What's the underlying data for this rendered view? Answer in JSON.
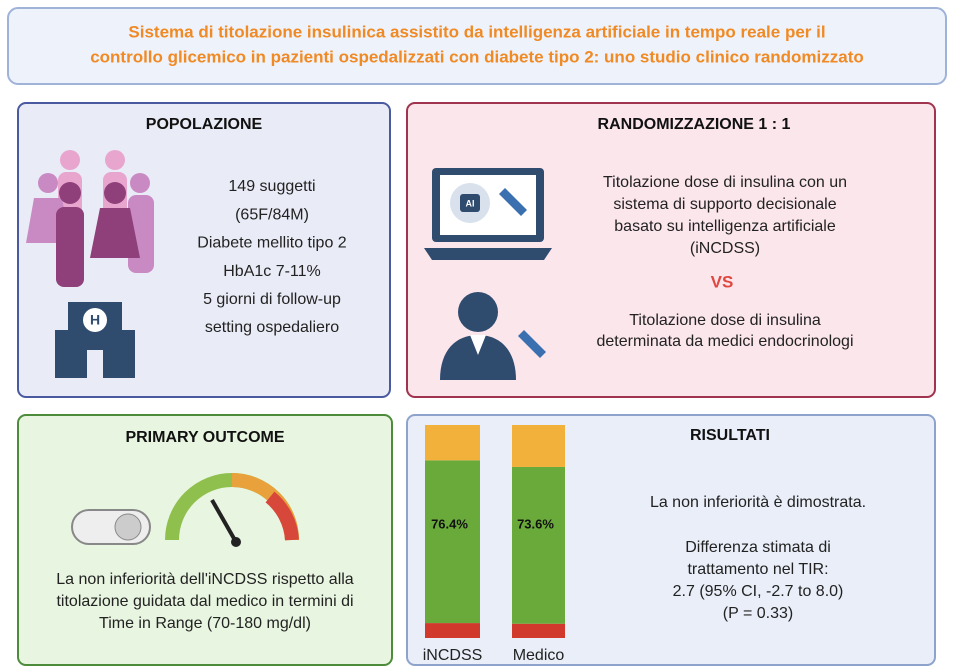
{
  "header": {
    "title": [
      "Sistema di titolazione insulinica assistito da intelligenza artificiale in tempo reale per il",
      "controllo glicemico in pazienti ospedalizzati con diabete tipo 2: uno studio clinico randomizzato"
    ]
  },
  "population": {
    "title": "POPOLAZIONE",
    "lines": [
      "149 suggetti",
      "(65F/84M)",
      "Diabete mellito tipo 2",
      "HbA1c 7-11%",
      "5 giorni di follow-up",
      "setting ospedaliero"
    ]
  },
  "randomization": {
    "title": "RANDOMIZZAZIONE 1 : 1",
    "arm1": [
      "Titolazione dose di insulina con un",
      "sistema di supporto decisionale",
      "basato su intelligenza artificiale",
      "(iNCDSS)"
    ],
    "vs": "VS",
    "arm2": [
      "Titolazione dose di insulina",
      "determinata da medici endocrinologi"
    ],
    "icon_label": "AI"
  },
  "outcome": {
    "title": "PRIMARY OUTCOME",
    "lines": [
      "La non inferiorità dell'iNCDSS rispetto alla",
      "titolazione guidata dal medico in termini di",
      "Time in Range (70-180 mg/dl)"
    ]
  },
  "results": {
    "title": "RISULTATI",
    "lines": [
      "La non inferiorità è dimostrata."
    ],
    "lines2": [
      "Differenza stimata di",
      "trattamento nel TIR:",
      "2.7 (95% CI, -2.7 to 8.0)",
      "(P = 0.33)"
    ]
  },
  "chart_data": {
    "type": "stacked-bar",
    "categories": [
      "iNCDSS",
      "Medico"
    ],
    "ylim": [
      0,
      100
    ],
    "series": [
      {
        "color": "#d0392b",
        "values": [
          7,
          6.7
        ]
      },
      {
        "color": "#6aaa3a",
        "values": [
          76.4,
          73.6
        ],
        "value_labels": [
          "76.4%",
          "73.6%"
        ]
      },
      {
        "color": "#f2b13a",
        "values": [
          16.6,
          19.7
        ]
      }
    ]
  }
}
